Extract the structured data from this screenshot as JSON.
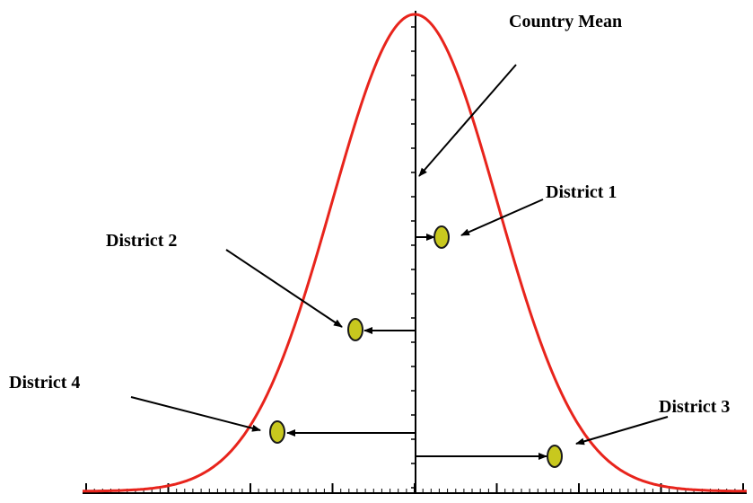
{
  "labels": {
    "country_mean": "Country Mean",
    "district_1": "District 1",
    "district_2": "District 2",
    "district_3": "District 3",
    "district_4": "District 4"
  },
  "colors": {
    "curve": "#e8241c",
    "marker_fill": "#c8c81e",
    "marker_stroke": "#1a1a1a",
    "arrow": "#000000",
    "axis": "#000000"
  }
}
